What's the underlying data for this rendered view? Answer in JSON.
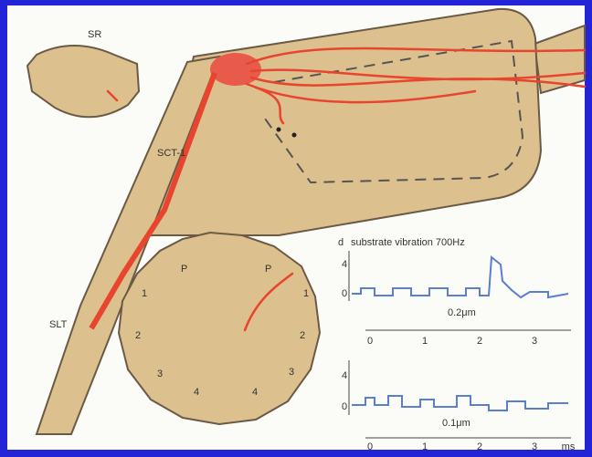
{
  "labels": {
    "sr": "SR",
    "sct": "SCT-1",
    "slt": "SLT"
  },
  "ganglion": {
    "segments": [
      "1",
      "2",
      "3",
      "4",
      "4",
      "3",
      "2",
      "1"
    ],
    "posterior": [
      "P",
      "P"
    ]
  },
  "plots": {
    "panel": "d",
    "title": "substrate vibration 700Hz",
    "top": {
      "yticks": [
        "4",
        "0"
      ],
      "scale": "0.2μm",
      "xticks": [
        "0",
        "1",
        "2",
        "3"
      ]
    },
    "bottom": {
      "yticks": [
        "4",
        "0"
      ],
      "scale": "0.1μm",
      "xticks": [
        "0",
        "1",
        "2",
        "3"
      ],
      "unit": "ms"
    }
  }
}
